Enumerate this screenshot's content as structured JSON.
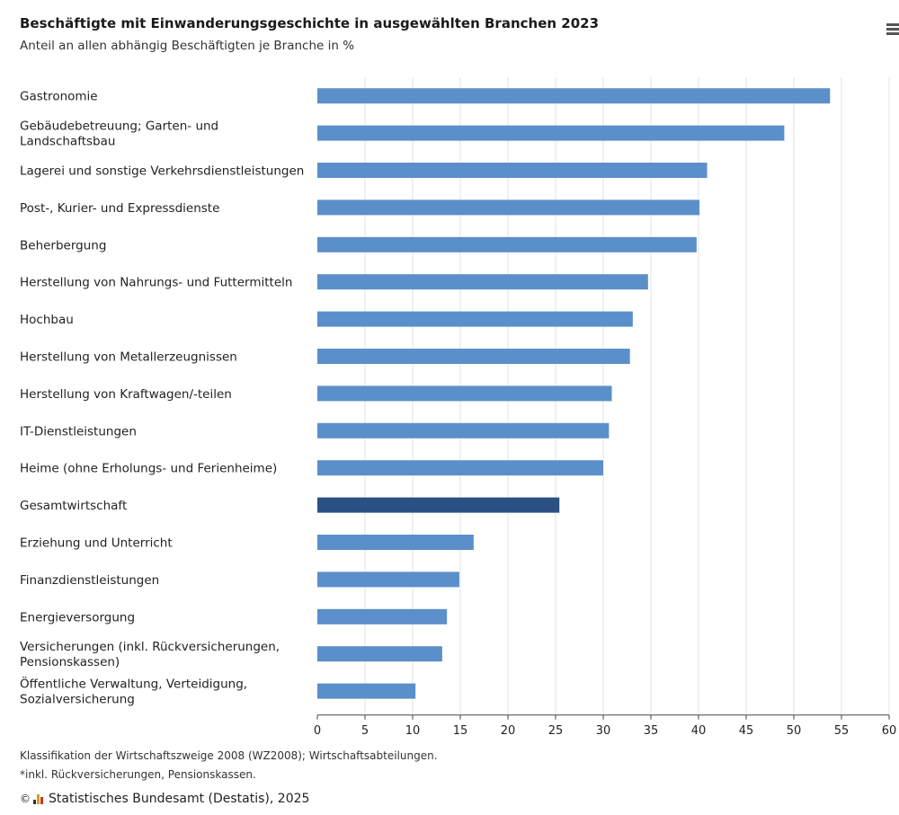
{
  "chart_data": {
    "type": "bar",
    "orientation": "horizontal",
    "title": "Beschäftigte mit Einwanderungsgeschichte in ausgewählten Branchen 2023",
    "subtitle": "Anteil an allen abhängig Beschäftigten je Branche in %",
    "categories": [
      [
        "Gastronomie"
      ],
      [
        "Gebäudebetreuung; Garten- und",
        "Landschaftsbau"
      ],
      [
        "Lagerei und sonstige Verkehrsdienstleistungen"
      ],
      [
        "Post-, Kurier- und Expressdienste"
      ],
      [
        "Beherbergung"
      ],
      [
        "Herstellung von Nahrungs- und Futtermitteln"
      ],
      [
        "Hochbau"
      ],
      [
        "Herstellung von Metallerzeugnissen"
      ],
      [
        "Herstellung von Kraftwagen/-teilen"
      ],
      [
        "IT-Dienstleistungen"
      ],
      [
        "Heime (ohne Erholungs- und Ferienheime)"
      ],
      [
        "Gesamtwirtschaft"
      ],
      [
        "Erziehung und Unterricht"
      ],
      [
        "Finanzdienstleistungen"
      ],
      [
        "Energieversorgung"
      ],
      [
        "Versicherungen (inkl. Rückversicherungen,",
        "Pensionskassen)"
      ],
      [
        "Öffentliche Verwaltung, Verteidigung,",
        "Sozialversicherung"
      ]
    ],
    "values": [
      53.8,
      49.0,
      40.9,
      40.1,
      39.8,
      34.7,
      33.1,
      32.8,
      30.9,
      30.6,
      30.0,
      25.4,
      16.4,
      14.9,
      13.6,
      13.1,
      10.3
    ],
    "highlight_index": 11,
    "colors": {
      "default": "#5b8fc9",
      "highlight": "#2a5183"
    },
    "xlim": [
      0,
      60
    ],
    "xticks": [
      0,
      5,
      10,
      15,
      20,
      25,
      30,
      35,
      40,
      45,
      50,
      55,
      60
    ],
    "grid": true,
    "legend": "none"
  },
  "notes": {
    "line1": "Klassifikation der Wirtschaftszweige 2008 (WZ2008); Wirtschaftsabteilungen.",
    "line2": "*inkl. Rückversicherungen, Pensionskassen."
  },
  "source": {
    "copyright_symbol": "©",
    "text": "Statistisches Bundesamt (Destatis), 2025",
    "logo_icon": "destatis-logo-icon"
  },
  "menu_icon": "hamburger-menu-icon"
}
